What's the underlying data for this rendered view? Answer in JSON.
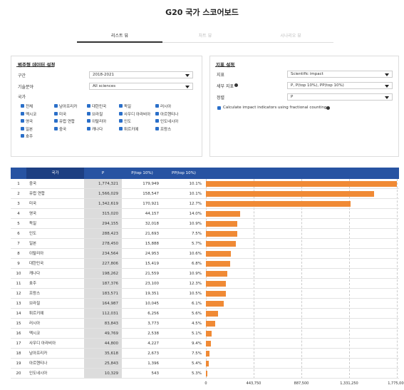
{
  "header": {
    "title": "G20 국가 스코어보드"
  },
  "tabs": [
    "리스트 뷰",
    "차트 뷰",
    "시나리오 뷰"
  ],
  "category_settings": {
    "title": "범주형 데이터 설정",
    "fields": [
      {
        "label": "구간",
        "value": "2018-2021"
      },
      {
        "label": "기술분야",
        "value": "All sciences"
      }
    ],
    "countries_label": "국가",
    "countries": [
      "전체",
      "남아프리카",
      "대한민국",
      "독일",
      "러시아",
      "멕시코",
      "미국",
      "브라질",
      "사우디 아라비아",
      "아르헨티나",
      "영국",
      "유럽 연합",
      "이탈리아",
      "인도",
      "인도네시아",
      "일본",
      "중국",
      "캐나다",
      "튀르키예",
      "프랑스",
      "호주"
    ]
  },
  "indicator_settings": {
    "title": "지표 설정",
    "fields": [
      {
        "label": "지표",
        "value": "Scientific impact"
      },
      {
        "label": "세부 지표",
        "value": "P, P(top 10%), PP(top 10%)"
      },
      {
        "label": "정렬",
        "value": "P"
      }
    ],
    "fractional_counting": "Calculate impact indicators using fractional counting"
  },
  "scoreboard": {
    "columns": [
      "국가",
      "P",
      "P(top 10%)",
      "PP(top 10%)"
    ],
    "rows": [
      {
        "rank": 1,
        "country": "중국",
        "p": 1774321,
        "p_label": "1,774,321",
        "p_top10": "179,949",
        "pp_top10": "10.1%"
      },
      {
        "rank": 2,
        "country": "유럽 연합",
        "p": 1566029,
        "p_label": "1,566,029",
        "p_top10": "158,547",
        "pp_top10": "10.1%"
      },
      {
        "rank": 3,
        "country": "미국",
        "p": 1342619,
        "p_label": "1,342,619",
        "p_top10": "170,921",
        "pp_top10": "12.7%"
      },
      {
        "rank": 4,
        "country": "영국",
        "p": 315020,
        "p_label": "315,020",
        "p_top10": "44,157",
        "pp_top10": "14.0%"
      },
      {
        "rank": 5,
        "country": "독일",
        "p": 294155,
        "p_label": "294,155",
        "p_top10": "32,018",
        "pp_top10": "10.9%"
      },
      {
        "rank": 6,
        "country": "인도",
        "p": 288423,
        "p_label": "288,423",
        "p_top10": "21,693",
        "pp_top10": "7.5%"
      },
      {
        "rank": 7,
        "country": "일본",
        "p": 278450,
        "p_label": "278,450",
        "p_top10": "15,888",
        "pp_top10": "5.7%"
      },
      {
        "rank": 8,
        "country": "이탈리아",
        "p": 234564,
        "p_label": "234,564",
        "p_top10": "24,953",
        "pp_top10": "10.6%"
      },
      {
        "rank": 9,
        "country": "대한민국",
        "p": 227806,
        "p_label": "227,806",
        "p_top10": "15,419",
        "pp_top10": "6.8%"
      },
      {
        "rank": 10,
        "country": "캐나다",
        "p": 198262,
        "p_label": "198,262",
        "p_top10": "21,559",
        "pp_top10": "10.9%"
      },
      {
        "rank": 11,
        "country": "호주",
        "p": 187376,
        "p_label": "187,376",
        "p_top10": "23,100",
        "pp_top10": "12.3%"
      },
      {
        "rank": 12,
        "country": "프랑스",
        "p": 183571,
        "p_label": "183,571",
        "p_top10": "19,351",
        "pp_top10": "10.5%"
      },
      {
        "rank": 13,
        "country": "브라질",
        "p": 164987,
        "p_label": "164,987",
        "p_top10": "10,045",
        "pp_top10": "6.1%"
      },
      {
        "rank": 14,
        "country": "튀르키예",
        "p": 112031,
        "p_label": "112,031",
        "p_top10": "6,256",
        "pp_top10": "5.6%"
      },
      {
        "rank": 15,
        "country": "러시아",
        "p": 83843,
        "p_label": "83,843",
        "p_top10": "3,773",
        "pp_top10": "4.5%"
      },
      {
        "rank": 16,
        "country": "멕시코",
        "p": 49769,
        "p_label": "49,769",
        "p_top10": "2,538",
        "pp_top10": "5.1%"
      },
      {
        "rank": 17,
        "country": "사우디 아라비아",
        "p": 44800,
        "p_label": "44,800",
        "p_top10": "4,227",
        "pp_top10": "9.4%"
      },
      {
        "rank": 18,
        "country": "남아프리카",
        "p": 35618,
        "p_label": "35,618",
        "p_top10": "2,673",
        "pp_top10": "7.5%"
      },
      {
        "rank": 19,
        "country": "아르헨티나",
        "p": 25843,
        "p_label": "25,843",
        "p_top10": "1,396",
        "pp_top10": "5.4%"
      },
      {
        "rank": 20,
        "country": "인도네시아",
        "p": 10329,
        "p_label": "10,329",
        "p_top10": "543",
        "pp_top10": "5.3%"
      }
    ],
    "xlim": [
      0,
      1775000
    ],
    "xticks": [
      0,
      {
        "value": 443750,
        "label": "443,750"
      },
      {
        "value": 887500,
        "label": "887,500"
      },
      {
        "value": 1331250,
        "label": "1,331,250"
      },
      {
        "value": 1775000,
        "label": "1,775,000"
      }
    ],
    "bar_color": "#f08a35"
  }
}
